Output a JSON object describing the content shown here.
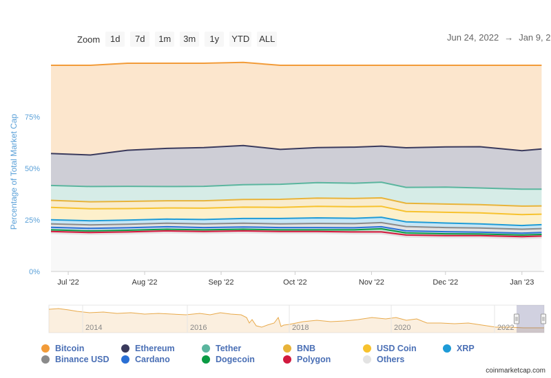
{
  "toolbar": {
    "zoom_label": "Zoom",
    "buttons": [
      "1d",
      "7d",
      "1m",
      "3m",
      "1y",
      "YTD",
      "ALL"
    ]
  },
  "range": {
    "from": "Jun 24, 2022",
    "arrow": "→",
    "to": "Jan 9, 2"
  },
  "credit": "coinmarketcap.com",
  "chart_data": {
    "type": "area",
    "stacked": true,
    "percent": true,
    "ylabel": "Percentage of Total Market Cap",
    "xlabel": "",
    "ylim": [
      0,
      100
    ],
    "yticks": [
      "0%",
      "25%",
      "50%",
      "75%"
    ],
    "xticks": [
      "Jul '22",
      "Aug '22",
      "Sep '22",
      "Oct '22",
      "Nov '22",
      "Dec '22",
      "Jan '23"
    ],
    "x": [
      "2022-06-24",
      "2022-07-10",
      "2022-07-25",
      "2022-08-10",
      "2022-08-25",
      "2022-09-10",
      "2022-09-25",
      "2022-10-10",
      "2022-10-25",
      "2022-11-05",
      "2022-11-15",
      "2022-12-01",
      "2022-12-15",
      "2023-01-01",
      "2023-01-09"
    ],
    "series": [
      {
        "name": "Others",
        "color": "#e3e3e3",
        "values": [
          18.5,
          18.0,
          18.3,
          18.8,
          18.5,
          18.8,
          18.5,
          18.5,
          18.3,
          18.3,
          16.8,
          16.5,
          16.5,
          16.0,
          16.3
        ]
      },
      {
        "name": "Polygon",
        "color": "#d1193e",
        "values": [
          0.9,
          0.9,
          0.9,
          0.9,
          0.9,
          0.9,
          0.9,
          0.9,
          0.9,
          0.9,
          0.9,
          0.9,
          0.9,
          0.9,
          0.9
        ]
      },
      {
        "name": "Dogecoin",
        "color": "#0a9a43",
        "values": [
          0.8,
          0.8,
          0.8,
          0.8,
          0.8,
          0.8,
          0.8,
          0.8,
          1.0,
          1.5,
          1.0,
          0.9,
          0.8,
          0.8,
          0.8
        ]
      },
      {
        "name": "Cardano",
        "color": "#2a6fd4",
        "values": [
          1.2,
          1.2,
          1.2,
          1.2,
          1.1,
          1.1,
          1.1,
          1.1,
          1.0,
          1.0,
          1.0,
          1.0,
          0.9,
          0.9,
          0.9
        ]
      },
      {
        "name": "Binance USD",
        "color": "#8a8a8a",
        "values": [
          1.7,
          1.7,
          1.7,
          1.7,
          1.8,
          1.8,
          1.8,
          2.0,
          2.0,
          2.0,
          2.1,
          2.0,
          2.0,
          1.9,
          1.9
        ]
      },
      {
        "name": "XRP",
        "color": "#1e9bd7",
        "values": [
          2.0,
          2.0,
          2.0,
          2.0,
          2.1,
          2.3,
          2.6,
          2.7,
          2.6,
          2.6,
          2.3,
          2.2,
          2.0,
          1.8,
          1.9
        ]
      },
      {
        "name": "USD Coin",
        "color": "#f7c22e",
        "values": [
          6.0,
          5.8,
          5.6,
          5.4,
          5.5,
          5.5,
          5.4,
          5.6,
          5.6,
          5.3,
          5.0,
          5.2,
          5.3,
          5.3,
          5.1
        ]
      },
      {
        "name": "BNB",
        "color": "#e8b339",
        "values": [
          3.4,
          3.4,
          3.5,
          3.5,
          3.6,
          3.7,
          3.9,
          4.0,
          4.0,
          4.1,
          4.0,
          4.0,
          4.0,
          4.1,
          4.0
        ]
      },
      {
        "name": "Tether",
        "color": "#5ab59e",
        "values": [
          7.2,
          7.4,
          7.3,
          6.9,
          7.0,
          7.2,
          7.3,
          7.5,
          7.4,
          7.6,
          7.7,
          8.2,
          8.1,
          8.2,
          8.1
        ]
      },
      {
        "name": "Ethereum",
        "color": "#3a3a5c",
        "values": [
          15.5,
          15.3,
          17.5,
          18.5,
          18.8,
          19.0,
          16.9,
          17.0,
          17.5,
          17.5,
          19.2,
          19.5,
          20.0,
          18.7,
          19.5
        ]
      },
      {
        "name": "Bitcoin",
        "color": "#f29b38",
        "values": [
          42.8,
          43.5,
          42.2,
          41.3,
          40.9,
          40.3,
          40.8,
          39.9,
          39.7,
          39.2,
          40.0,
          39.6,
          39.5,
          41.4,
          40.6
        ]
      }
    ],
    "legend_order": [
      "Bitcoin",
      "Ethereum",
      "Tether",
      "BNB",
      "USD Coin",
      "XRP",
      "Binance USD",
      "Cardano",
      "Dogecoin",
      "Polygon",
      "Others"
    ],
    "navigator": {
      "labels": [
        "2014",
        "2016",
        "2018",
        "2020",
        "2022"
      ],
      "selection": "last ~6 months"
    }
  }
}
